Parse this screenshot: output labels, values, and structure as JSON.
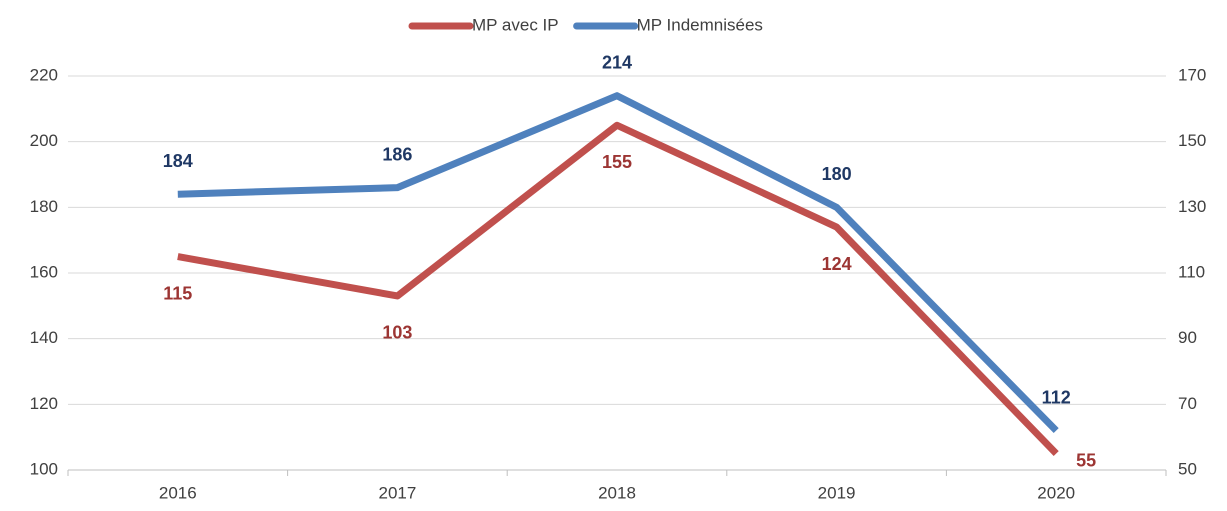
{
  "chart_data": {
    "type": "line",
    "categories": [
      "2016",
      "2017",
      "2018",
      "2019",
      "2020"
    ],
    "series": [
      {
        "name": "MP avec IP",
        "color": "#c0504d",
        "label_color": "#9c3533",
        "axis": "y2",
        "values": [
          115,
          103,
          155,
          124,
          55
        ]
      },
      {
        "name": "MP Indemnisées",
        "color": "#4f81bd",
        "label_color": "#1f3864",
        "values": [
          184,
          186,
          214,
          180,
          112
        ]
      }
    ],
    "ylim": [
      100,
      220
    ],
    "yticks": [
      100,
      120,
      140,
      160,
      180,
      200,
      220
    ],
    "y2lim": [
      50,
      170
    ],
    "y2ticks": [
      50,
      70,
      90,
      110,
      130,
      150,
      170
    ],
    "grid": true,
    "legend": "top"
  }
}
